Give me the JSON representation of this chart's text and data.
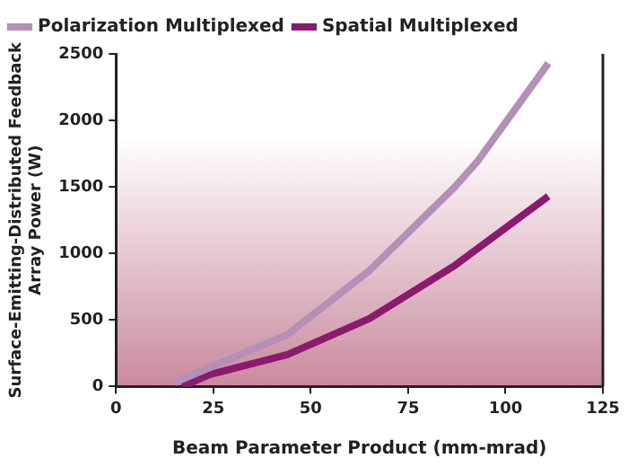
{
  "chart_data": {
    "type": "line",
    "xlabel": "Beam Parameter Product (mm-mrad)",
    "ylabel": "Surface-Emitting-Distributed Feedback\nArray Power (W)",
    "xlim": [
      0,
      125
    ],
    "xticks": [
      0,
      25,
      50,
      75,
      100,
      125
    ],
    "ylim": [
      0,
      2500
    ],
    "yticks": [
      0,
      500,
      1000,
      1500,
      2000,
      2500
    ],
    "series": [
      {
        "name": "Polarization Multiplexed",
        "color": "#b48fb6",
        "x": [
          15,
          44,
          65,
          87,
          93,
          111
        ],
        "values": [
          30,
          390,
          870,
          1500,
          1700,
          2430
        ]
      },
      {
        "name": "Spatial Multiplexed",
        "color": "#8b1a6e",
        "x": [
          17,
          24,
          44,
          65,
          87,
          111
        ],
        "values": [
          0,
          90,
          240,
          510,
          910,
          1430
        ]
      }
    ],
    "grid": false,
    "legend": "top left",
    "marker": "none",
    "line_style": "solid"
  }
}
